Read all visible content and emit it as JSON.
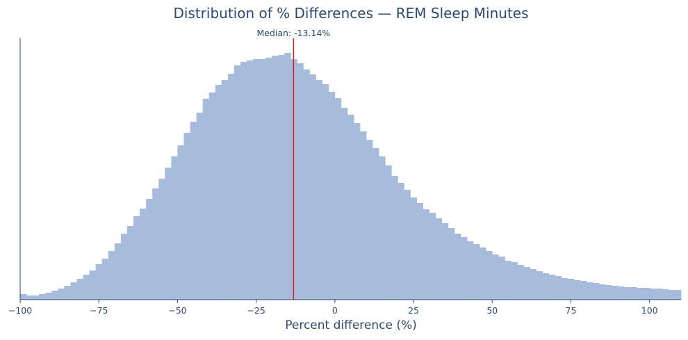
{
  "chart_data": {
    "type": "bar",
    "subtype": "histogram",
    "title": "Distribution of % Differences — REM Sleep Minutes",
    "xlabel": "Percent difference (%)",
    "ylabel": "",
    "xlim": [
      -100,
      110
    ],
    "ylim": [
      0,
      376
    ],
    "y_units": "relative frequency (unlabeled axis)",
    "grid": false,
    "legend": null,
    "bar_color": "#a7bbdb",
    "axis_color": "#2b4a6f",
    "x_ticks": [
      -100,
      -75,
      -50,
      -25,
      0,
      25,
      50,
      75,
      100
    ],
    "x_tick_labels": [
      "−100",
      "−75",
      "−50",
      "−25",
      "0",
      "25",
      "50",
      "75",
      "100"
    ],
    "bin_start": -100,
    "bin_width": 2,
    "values": [
      8,
      6,
      6,
      8,
      10,
      13,
      16,
      20,
      25,
      30,
      36,
      42,
      51,
      59,
      70,
      81,
      95,
      106,
      120,
      131,
      145,
      160,
      174,
      190,
      206,
      222,
      240,
      256,
      269,
      289,
      298,
      309,
      316,
      325,
      337,
      342,
      344,
      346,
      346,
      348,
      351,
      352,
      355,
      346,
      340,
      331,
      324,
      316,
      310,
      299,
      290,
      276,
      266,
      254,
      242,
      230,
      218,
      206,
      193,
      178,
      168,
      158,
      147,
      139,
      130,
      125,
      117,
      110,
      103,
      95,
      90,
      84,
      80,
      75,
      70,
      65,
      62,
      56,
      54,
      50,
      47,
      44,
      41,
      38,
      36,
      34,
      31,
      30,
      28,
      27,
      25,
      24,
      22,
      21,
      20,
      19,
      18,
      18,
      17,
      17,
      16,
      16,
      15,
      14,
      14
    ],
    "annotations": [
      {
        "type": "vline",
        "x": -13.14,
        "color": "#e31a1c",
        "label": "Median: -13.14%"
      }
    ]
  }
}
